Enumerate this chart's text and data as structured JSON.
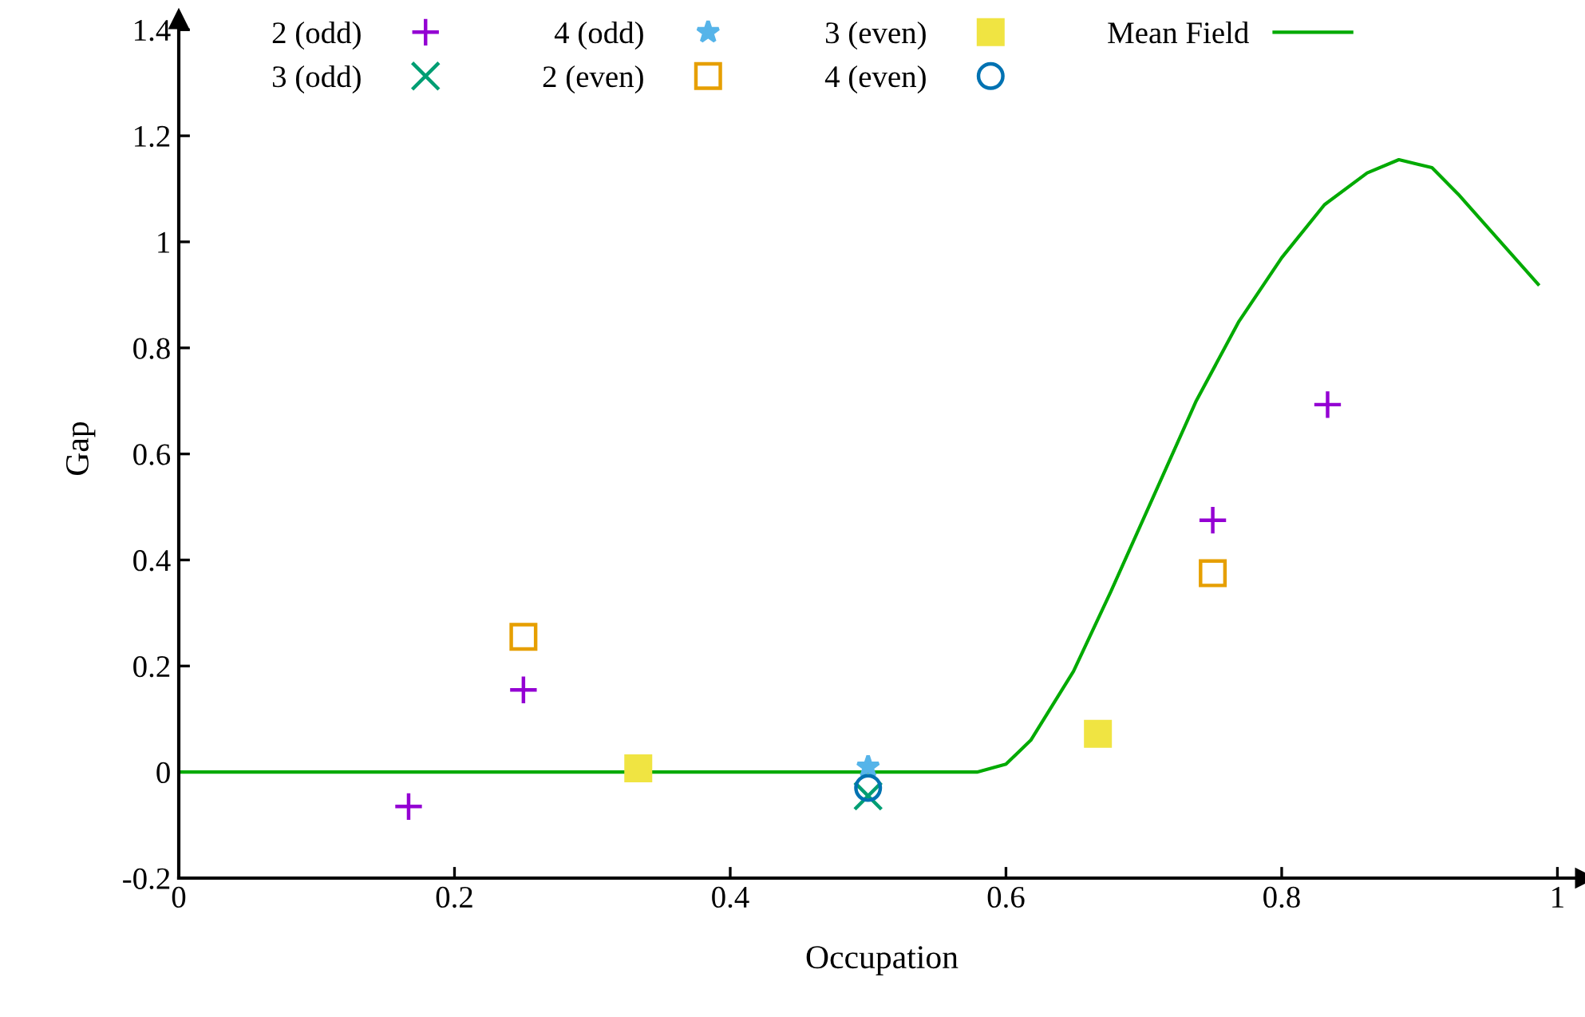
{
  "chart_data": {
    "type": "scatter",
    "xlabel": "Occupation",
    "ylabel": "Gap",
    "xlim": [
      0,
      1.02
    ],
    "ylim": [
      -0.2,
      1.42
    ],
    "xticks": [
      0,
      0.2,
      0.4,
      0.6,
      0.8,
      1
    ],
    "yticks": [
      -0.2,
      0,
      0.2,
      0.4,
      0.6,
      0.8,
      1,
      1.2,
      1.4
    ],
    "grid": false,
    "legend": "top",
    "series": [
      {
        "name": "2 (odd)",
        "color": "#9400d3",
        "marker": "plus",
        "x": [
          0.1667,
          0.25,
          0.75,
          0.8333
        ],
        "values": [
          -0.065,
          0.155,
          0.475,
          0.693
        ]
      },
      {
        "name": "3 (odd)",
        "color": "#009e73",
        "marker": "cross",
        "x": [
          0.5
        ],
        "values": [
          -0.045
        ]
      },
      {
        "name": "4 (odd)",
        "color": "#56b4e9",
        "marker": "star",
        "x": [
          0.5
        ],
        "values": [
          0.01
        ]
      },
      {
        "name": "2 (even)",
        "color": "#e69f00",
        "marker": "square",
        "x": [
          0.25,
          0.75
        ],
        "values": [
          0.255,
          0.375
        ]
      },
      {
        "name": "3 (even)",
        "color": "#f0e442",
        "marker": "square",
        "x": [
          0.3333,
          0.6667
        ],
        "values": [
          0.007,
          0.072
        ]
      },
      {
        "name": "4 (even)",
        "color": "#0072b2",
        "marker": "circle",
        "x": [
          0.5
        ],
        "values": [
          -0.03
        ]
      },
      {
        "name": "Mean Field",
        "type": "line",
        "color": "#00aa00",
        "marker": "none",
        "line_style": "solid",
        "x": [
          0,
          0.3,
          0.579,
          0.6,
          0.618,
          0.649,
          0.676,
          0.707,
          0.738,
          0.769,
          0.8,
          0.831,
          0.862,
          0.885,
          0.909,
          0.928,
          0.986
        ],
        "values": [
          0,
          0,
          0,
          0.015,
          0.06,
          0.19,
          0.34,
          0.52,
          0.7,
          0.85,
          0.97,
          1.07,
          1.13,
          1.155,
          1.14,
          1.09,
          0.92
        ]
      }
    ]
  }
}
